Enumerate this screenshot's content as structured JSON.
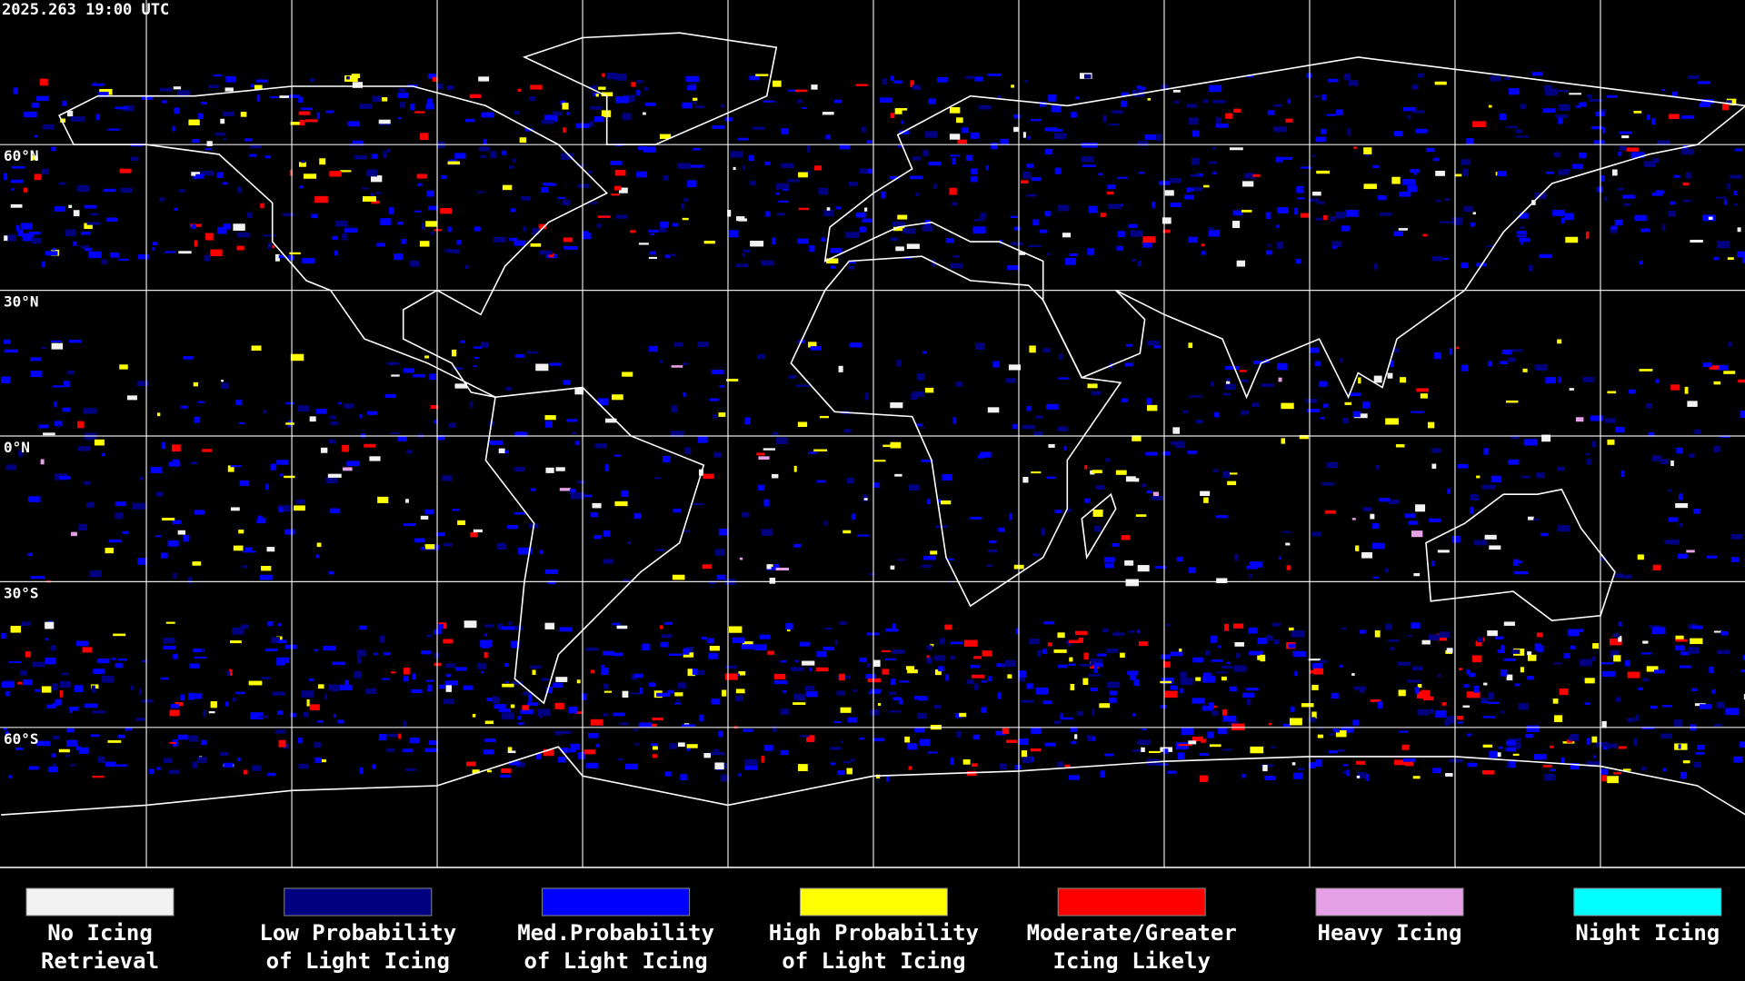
{
  "header": {
    "timestamp": "2025.263 19:00 UTC"
  },
  "map": {
    "lat_labels": [
      "60°N",
      "30°N",
      "0°N",
      "30°S",
      "60°S"
    ]
  },
  "legend": {
    "items": [
      {
        "label": [
          "No Icing",
          "Retrieval"
        ],
        "color": "#f2f2f2"
      },
      {
        "label": [
          "Low Probability",
          "of Light Icing"
        ],
        "color": "#000080"
      },
      {
        "label": [
          "Med.Probability",
          "of Light Icing"
        ],
        "color": "#0000ff"
      },
      {
        "label": [
          "High Probability",
          "of Light Icing"
        ],
        "color": "#ffff00"
      },
      {
        "label": [
          "Moderate/Greater",
          "Icing Likely"
        ],
        "color": "#ff0000"
      },
      {
        "label": [
          "Heavy Icing"
        ],
        "color": "#e6a0e6"
      },
      {
        "label": [
          "Night Icing"
        ],
        "color": "#00ffff"
      }
    ]
  }
}
